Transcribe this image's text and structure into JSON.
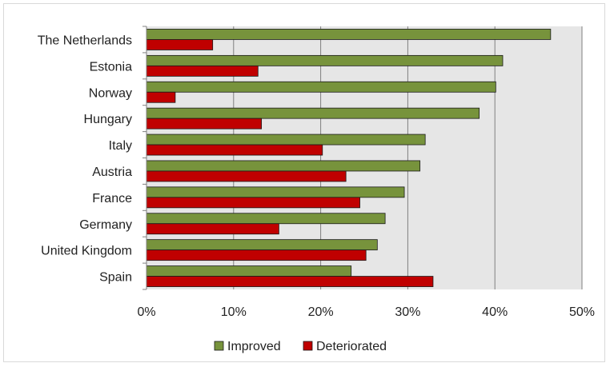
{
  "chart_data": {
    "type": "bar",
    "orientation": "horizontal",
    "categories": [
      "The Netherlands",
      "Estonia",
      "Norway",
      "Hungary",
      "Italy",
      "Austria",
      "France",
      "Germany",
      "United Kingdom",
      "Spain"
    ],
    "series": [
      {
        "name": "Improved",
        "color": "#77933c",
        "values": [
          46.4,
          40.9,
          40.1,
          38.2,
          32.0,
          31.4,
          29.6,
          27.4,
          26.5,
          23.5
        ]
      },
      {
        "name": "Deteriorated",
        "color": "#c00000",
        "values": [
          7.6,
          12.8,
          3.3,
          13.2,
          20.2,
          22.9,
          24.5,
          15.2,
          25.2,
          32.9
        ]
      }
    ],
    "xlim": [
      0,
      50
    ],
    "xticks": [
      "0%",
      "10%",
      "20%",
      "30%",
      "40%",
      "50%"
    ],
    "grid": true,
    "plot_background": "#e6e6e6",
    "legend_position": "bottom"
  }
}
